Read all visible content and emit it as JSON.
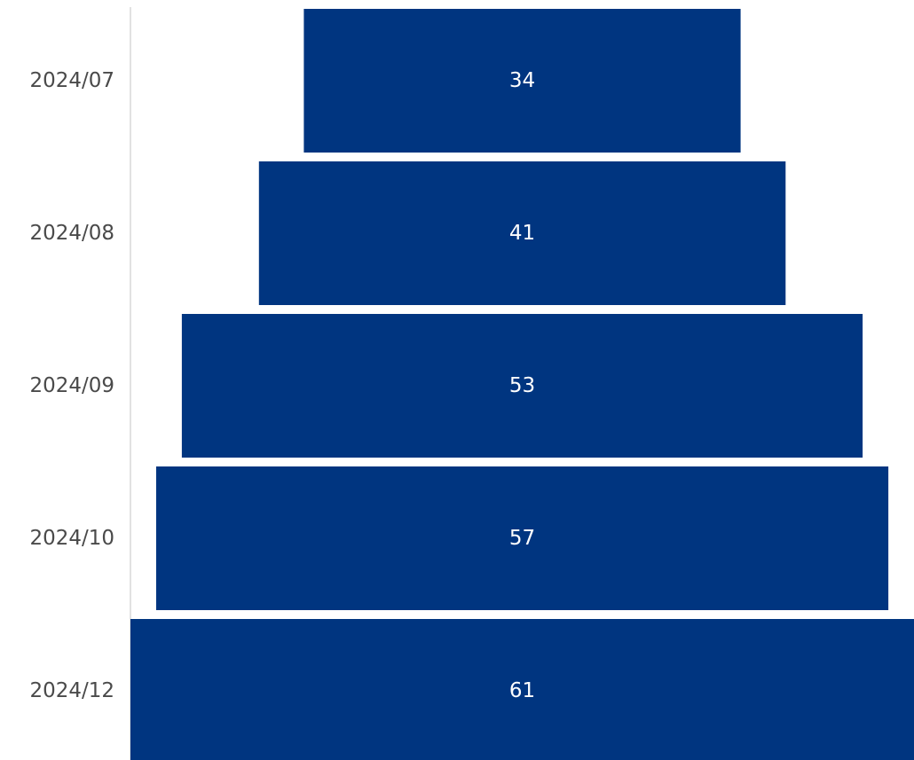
{
  "chart_data": {
    "type": "bar",
    "subtype": "funnel",
    "categories": [
      "2024/07",
      "2024/08",
      "2024/09",
      "2024/10",
      "2024/12"
    ],
    "values": [
      34,
      41,
      53,
      57,
      61
    ],
    "title": "",
    "xlabel": "",
    "ylabel": "",
    "grid": false,
    "legend": "none",
    "bar_color": "#003580",
    "axis_color": "#d9d9d9",
    "label_color": "#4a4a4a",
    "value_label_color": "#ffffff"
  }
}
